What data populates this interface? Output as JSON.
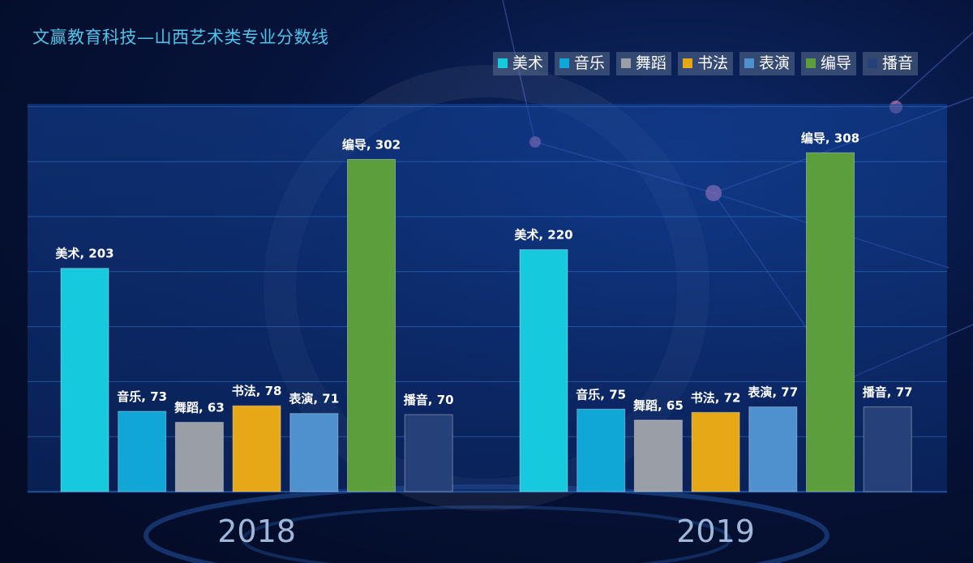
{
  "title": "文赢教育科技—山西艺术类专业分数线",
  "colors": {
    "美术": "#17c9dc",
    "音乐": "#10a6d6",
    "舞蹈": "#9a9ea6",
    "书法": "#e6a817",
    "表演": "#4f90cf",
    "编导": "#5d9e3c",
    "播音": "#26417a"
  },
  "chart_data": {
    "type": "bar",
    "title": "文赢教育科技—山西艺术类专业分数线",
    "categories": [
      "2018",
      "2019"
    ],
    "series": [
      {
        "name": "美术",
        "values": [
          203,
          220
        ]
      },
      {
        "name": "音乐",
        "values": [
          73,
          75
        ]
      },
      {
        "name": "舞蹈",
        "values": [
          63,
          65
        ]
      },
      {
        "name": "书法",
        "values": [
          78,
          72
        ]
      },
      {
        "name": "表演",
        "values": [
          71,
          77
        ]
      },
      {
        "name": "编导",
        "values": [
          302,
          308
        ]
      },
      {
        "name": "播音",
        "values": [
          70,
          77
        ]
      }
    ],
    "xlabel": "",
    "ylabel": "",
    "ylim": [
      0,
      350
    ],
    "grid": true,
    "legend_position": "top-right"
  }
}
